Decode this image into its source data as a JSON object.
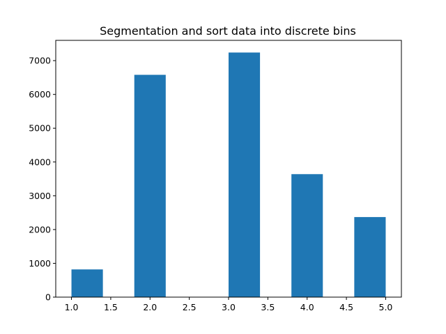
{
  "chart_data": {
    "type": "bar",
    "title": "Segmentation and sort data into discrete bins",
    "xlabel": "",
    "ylabel": "",
    "xlim": [
      0.8,
      5.2
    ],
    "ylim": [
      0,
      7600
    ],
    "grid": false,
    "bar_color": "#1f77b4",
    "bins": [
      {
        "start": 1.0,
        "end": 1.4,
        "value": 820
      },
      {
        "start": 1.8,
        "end": 2.2,
        "value": 6580
      },
      {
        "start": 2.2,
        "end": 2.6,
        "value": 0
      },
      {
        "start": 3.0,
        "end": 3.4,
        "value": 7240
      },
      {
        "start": 3.8,
        "end": 4.2,
        "value": 3640
      },
      {
        "start": 4.6,
        "end": 5.0,
        "value": 2370
      }
    ],
    "x_ticks": [
      {
        "value": 1.0,
        "label": "1.0"
      },
      {
        "value": 1.5,
        "label": "1.5"
      },
      {
        "value": 2.0,
        "label": "2.0"
      },
      {
        "value": 2.5,
        "label": "2.5"
      },
      {
        "value": 3.0,
        "label": "3.0"
      },
      {
        "value": 3.5,
        "label": "3.5"
      },
      {
        "value": 4.0,
        "label": "4.0"
      },
      {
        "value": 4.5,
        "label": "4.5"
      },
      {
        "value": 5.0,
        "label": "5.0"
      }
    ],
    "y_ticks": [
      {
        "value": 0,
        "label": "0"
      },
      {
        "value": 1000,
        "label": "1000"
      },
      {
        "value": 2000,
        "label": "2000"
      },
      {
        "value": 3000,
        "label": "3000"
      },
      {
        "value": 4000,
        "label": "4000"
      },
      {
        "value": 5000,
        "label": "5000"
      },
      {
        "value": 6000,
        "label": "6000"
      },
      {
        "value": 7000,
        "label": "7000"
      }
    ]
  }
}
